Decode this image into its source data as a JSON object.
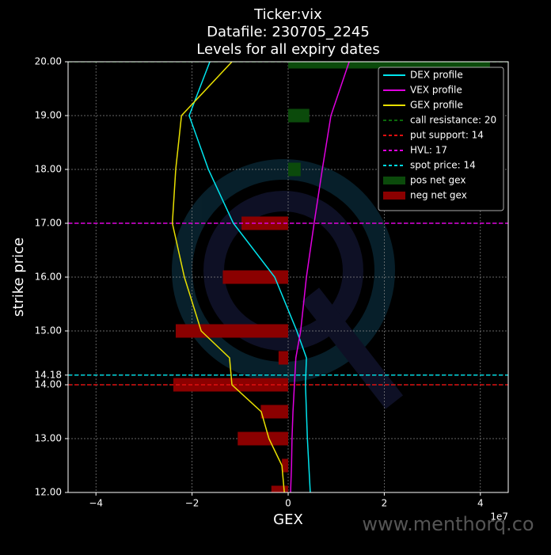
{
  "chart_data": {
    "type": "bar",
    "title": [
      "Ticker:vix",
      "Datafile: 230705_2245",
      "Levels for all expiry dates"
    ],
    "x_label": "GEX",
    "y_label": "strike price",
    "x_offset_label": "1e7",
    "watermark": "www.menthorq.co",
    "y": [
      20,
      19,
      18,
      17,
      16,
      15,
      14.5,
      14,
      13.5,
      13,
      12.5,
      12
    ],
    "series": [
      {
        "name": "DEX profile",
        "color": "#00e5ee",
        "type": "line",
        "values": [
          -1.63,
          -2.06,
          -1.66,
          -1.14,
          -0.28,
          0.18,
          0.38,
          0.36,
          0.38,
          0.4,
          0.43,
          0.46
        ]
      },
      {
        "name": "VEX profile",
        "color": "#e000e0",
        "type": "line",
        "values": [
          1.27,
          0.89,
          0.71,
          0.54,
          0.38,
          0.26,
          0.16,
          0.13,
          0.1,
          0.08,
          0.07,
          0.05
        ]
      },
      {
        "name": "GEX profile",
        "color": "#e8e000",
        "type": "line",
        "values": [
          -1.17,
          -2.22,
          -2.34,
          -2.41,
          -2.16,
          -1.81,
          -1.22,
          -1.17,
          -0.56,
          -0.4,
          -0.13,
          -0.08
        ]
      },
      {
        "name": "pos net gex",
        "color": "#0b4a0b",
        "type": "bar",
        "values": [
          4.2,
          0.44,
          0.26,
          null,
          null,
          null,
          null,
          null,
          null,
          null,
          null,
          null
        ]
      },
      {
        "name": "neg net gex",
        "color": "#8b0000",
        "type": "bar",
        "values": [
          null,
          null,
          null,
          -0.97,
          -1.36,
          -2.34,
          -0.2,
          -2.39,
          -0.57,
          -1.05,
          -0.13,
          -0.35
        ]
      }
    ],
    "ref_lines": [
      {
        "name": "call resistance: 20",
        "value": 20,
        "color": "#0b6a0b"
      },
      {
        "name": "put support: 14",
        "value": 14,
        "color": "#e01010"
      },
      {
        "name": "HVL: 17",
        "value": 17,
        "color": "#e000e0"
      },
      {
        "name": "spot price: 14",
        "value": 14.18,
        "color": "#00d8e0"
      }
    ],
    "bar_height": 0.25,
    "xlim": [
      -4.58,
      4.58
    ],
    "ylim": [
      12,
      20
    ],
    "xticks": [
      {
        "value": -4,
        "label": "−4"
      },
      {
        "value": -2,
        "label": "−2"
      },
      0,
      2,
      4
    ],
    "yticks": [
      {
        "value": 12,
        "label": "12.00"
      },
      {
        "value": 13,
        "label": "13.00"
      },
      {
        "value": 14,
        "label": "14.00"
      },
      {
        "value": 14.18,
        "label": "14.18"
      },
      {
        "value": 15,
        "label": "15.00"
      },
      {
        "value": 16,
        "label": "16.00"
      },
      {
        "value": 17,
        "label": "17.00"
      },
      {
        "value": 18,
        "label": "18.00"
      },
      {
        "value": 19,
        "label": "19.00"
      },
      {
        "value": 20,
        "label": "20.00"
      }
    ],
    "grid": true,
    "legend": "upper right"
  }
}
